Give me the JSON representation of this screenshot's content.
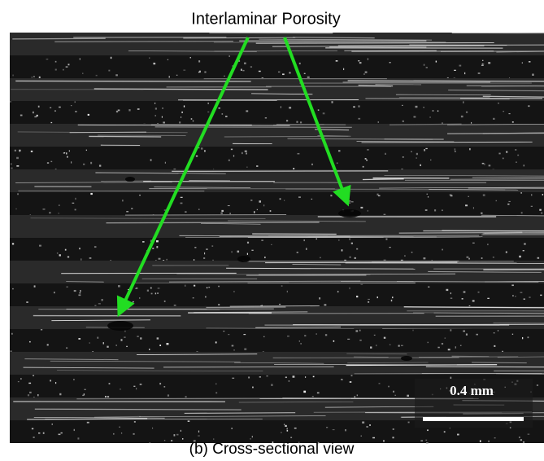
{
  "annotation": {
    "label": "Interlaminar Porosity"
  },
  "scale_bar": {
    "label": "0.4 mm"
  },
  "caption": "(b)  Cross-sectional view"
}
